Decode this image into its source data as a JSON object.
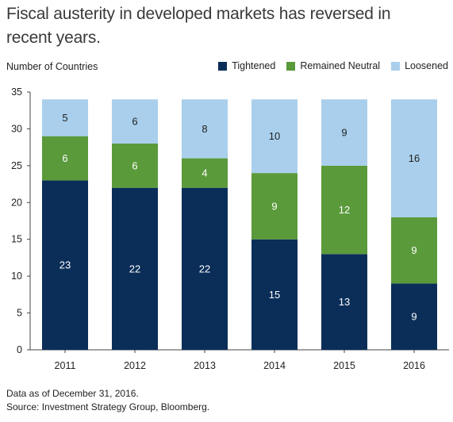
{
  "title": "Fiscal austerity in developed markets has reversed in recent years.",
  "footer": {
    "note": "Data as of December 31, 2016.",
    "source": "Source: Investment Strategy Group, Bloomberg."
  },
  "colors": {
    "tightened": "#0b2e59",
    "neutral": "#5a9a3a",
    "loosened": "#a9cfec"
  },
  "chart_data": {
    "type": "bar",
    "stacked": true,
    "title": "Fiscal austerity in developed markets has reversed in recent years.",
    "ylabel": "Number of Countries",
    "xlabel": "",
    "categories": [
      "2011",
      "2012",
      "2013",
      "2014",
      "2015",
      "2016"
    ],
    "series": [
      {
        "name": "Tightened",
        "values": [
          23,
          22,
          22,
          15,
          13,
          9
        ]
      },
      {
        "name": "Remained Neutral",
        "values": [
          6,
          6,
          4,
          9,
          12,
          9
        ]
      },
      {
        "name": "Loosened",
        "values": [
          5,
          6,
          8,
          10,
          9,
          16
        ]
      }
    ],
    "ylim": [
      0,
      35
    ],
    "yticks": [
      "0",
      "5",
      "10",
      "15",
      "20",
      "25",
      "30",
      "35"
    ],
    "legend_position": "top-right",
    "grid": false
  }
}
